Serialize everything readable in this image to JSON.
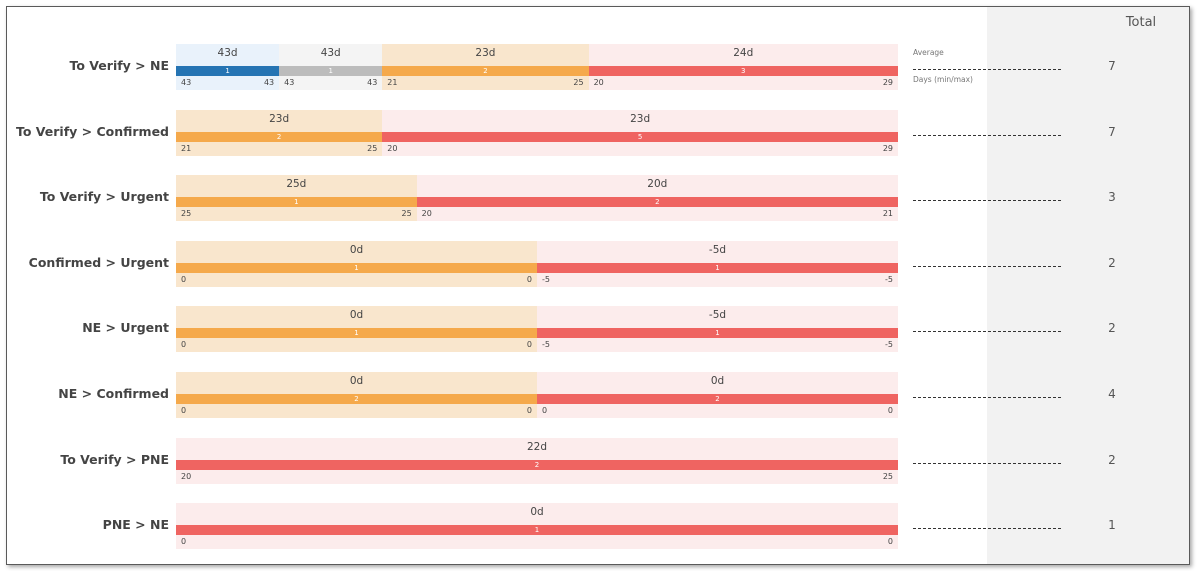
{
  "chart_data": {
    "type": "bar",
    "total_header": "Total",
    "legend": {
      "average_label": "Average",
      "range_label": "Days (min/max)"
    },
    "colors": {
      "blue": "#2574b3",
      "gray": "#bcbcbc",
      "orange": "#f5a94b",
      "red": "#ef6461",
      "blue_bg": "#e9f2fb",
      "gray_bg": "#f4f4f4",
      "orange_bg": "#f9e6cd",
      "red_bg": "#fcecec"
    },
    "rows": [
      {
        "label": "To Verify > NE",
        "total": 7,
        "segments": [
          {
            "color": "blue",
            "value": "43d",
            "count": 1,
            "min": 43,
            "max": 43
          },
          {
            "color": "gray",
            "value": "43d",
            "count": 1,
            "min": 43,
            "max": 43
          },
          {
            "color": "orange",
            "value": "23d",
            "count": 2,
            "min": 21,
            "max": 25
          },
          {
            "color": "red",
            "value": "24d",
            "count": 3,
            "min": 20,
            "max": 29
          }
        ]
      },
      {
        "label": "To Verify > Confirmed",
        "total": 7,
        "segments": [
          {
            "color": "orange",
            "value": "23d",
            "count": 2,
            "min": 21,
            "max": 25
          },
          {
            "color": "red",
            "value": "23d",
            "count": 5,
            "min": 20,
            "max": 29
          }
        ]
      },
      {
        "label": "To Verify > Urgent",
        "total": 3,
        "segments": [
          {
            "color": "orange",
            "value": "25d",
            "count": 1,
            "min": 25,
            "max": 25
          },
          {
            "color": "red",
            "value": "20d",
            "count": 2,
            "min": 20,
            "max": 21
          }
        ]
      },
      {
        "label": "Confirmed > Urgent",
        "total": 2,
        "segments": [
          {
            "color": "orange",
            "value": "0d",
            "count": 1,
            "min": 0,
            "max": 0
          },
          {
            "color": "red",
            "value": "-5d",
            "count": 1,
            "min": -5,
            "max": -5
          }
        ]
      },
      {
        "label": "NE > Urgent",
        "total": 2,
        "segments": [
          {
            "color": "orange",
            "value": "0d",
            "count": 1,
            "min": 0,
            "max": 0
          },
          {
            "color": "red",
            "value": "-5d",
            "count": 1,
            "min": -5,
            "max": -5
          }
        ]
      },
      {
        "label": "NE > Confirmed",
        "total": 4,
        "segments": [
          {
            "color": "orange",
            "value": "0d",
            "count": 2,
            "min": 0,
            "max": 0
          },
          {
            "color": "red",
            "value": "0d",
            "count": 2,
            "min": 0,
            "max": 0
          }
        ]
      },
      {
        "label": "To Verify > PNE",
        "total": 2,
        "segments": [
          {
            "color": "red",
            "value": "22d",
            "count": 2,
            "min": 20,
            "max": 25
          }
        ]
      },
      {
        "label": "PNE > NE",
        "total": 1,
        "segments": [
          {
            "color": "red",
            "value": "0d",
            "count": 1,
            "min": 0,
            "max": 0
          }
        ]
      }
    ]
  }
}
